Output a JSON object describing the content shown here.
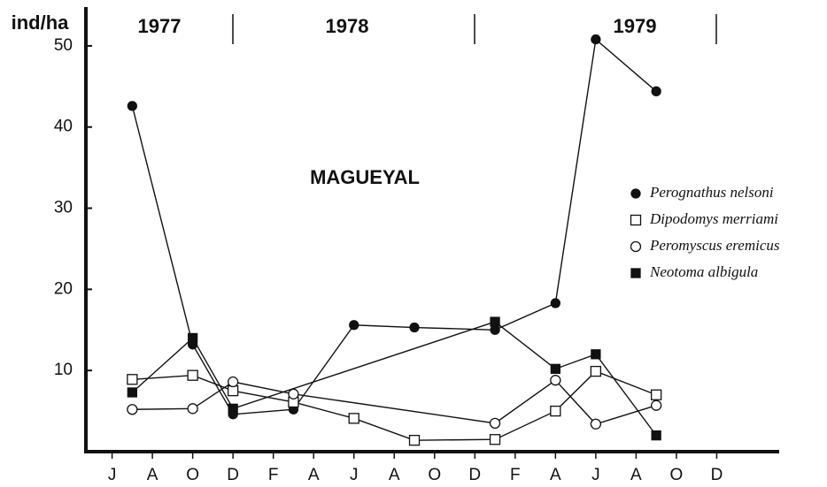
{
  "chart_data": {
    "type": "line",
    "y_label": "ind/ha",
    "annotation": "MAGUEYAL",
    "years": [
      "1977",
      "1978",
      "1979"
    ],
    "xlim": [
      -1.3,
      33.1
    ],
    "xticks": [
      {
        "value": 0,
        "label": "J"
      },
      {
        "value": 2,
        "label": "A"
      },
      {
        "value": 4,
        "label": "O"
      },
      {
        "value": 6,
        "label": "D"
      },
      {
        "value": 8,
        "label": "F"
      },
      {
        "value": 10,
        "label": "A"
      },
      {
        "value": 12,
        "label": "J"
      },
      {
        "value": 14,
        "label": "A"
      },
      {
        "value": 16,
        "label": "O"
      },
      {
        "value": 18,
        "label": "D"
      },
      {
        "value": 20,
        "label": "F"
      },
      {
        "value": 22,
        "label": "A"
      },
      {
        "value": 24,
        "label": "J"
      },
      {
        "value": 26,
        "label": "A"
      },
      {
        "value": 28,
        "label": "O"
      },
      {
        "value": 30,
        "label": "D"
      }
    ],
    "ylim": [
      0,
      55
    ],
    "yticks": [
      10,
      20,
      30,
      40,
      50
    ],
    "series": [
      {
        "name": "Perognathus nelsoni",
        "marker": "filled-circle",
        "color": "#111",
        "x": [
          1,
          4,
          6,
          9,
          12,
          15,
          19,
          22,
          24,
          27
        ],
        "values": [
          42.6,
          13.2,
          4.6,
          5.2,
          15.6,
          15.3,
          15,
          18.3,
          50.8,
          44.4
        ]
      },
      {
        "name": "Dipodomys merriami",
        "marker": "open-square",
        "color": "#111",
        "x": [
          1,
          4,
          6,
          9,
          12,
          15,
          19,
          22,
          24,
          27
        ],
        "values": [
          8.9,
          9.4,
          7.5,
          6.1,
          4.1,
          1.4,
          1.5,
          5,
          9.9,
          7
        ]
      },
      {
        "name": "Peromyscus eremicus",
        "marker": "open-circle",
        "color": "#111",
        "x": [
          1,
          4,
          6,
          9,
          19,
          22,
          24,
          27
        ],
        "values": [
          5.2,
          5.3,
          8.6,
          7.1,
          3.5,
          8.8,
          3.4,
          5.7
        ]
      },
      {
        "name": "Neotoma albigula",
        "marker": "filled-square",
        "color": "#111",
        "x": [
          1,
          4,
          6,
          19,
          22,
          24,
          27
        ],
        "values": [
          7.3,
          14,
          5.3,
          16,
          10.2,
          12,
          2
        ]
      }
    ]
  }
}
